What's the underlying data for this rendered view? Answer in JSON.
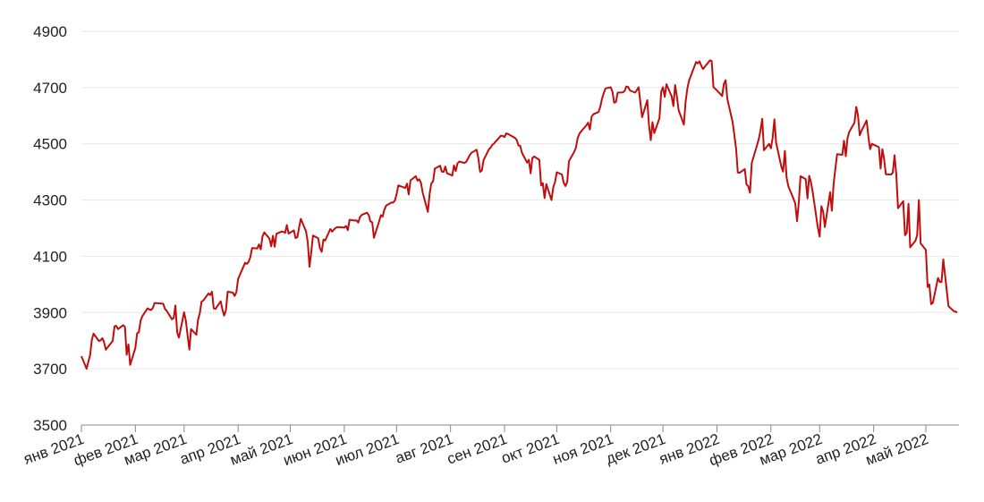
{
  "chart_data": {
    "type": "line",
    "color": "#c00d0d",
    "grid": true,
    "ylim": [
      3500,
      4900
    ],
    "yticks": [
      3500,
      3700,
      3900,
      4100,
      4300,
      4500,
      4700,
      4900
    ],
    "xlim": [
      0,
      504
    ],
    "xticks": [
      {
        "value": 0,
        "label": "янв 2021"
      },
      {
        "value": 31,
        "label": "фев 2021"
      },
      {
        "value": 59,
        "label": "мар 2021"
      },
      {
        "value": 90,
        "label": "апр 2021"
      },
      {
        "value": 120,
        "label": "май 2021"
      },
      {
        "value": 151,
        "label": "июн 2021"
      },
      {
        "value": 181,
        "label": "июл 2021"
      },
      {
        "value": 212,
        "label": "авг 2021"
      },
      {
        "value": 243,
        "label": "сен 2021"
      },
      {
        "value": 273,
        "label": "окт 2021"
      },
      {
        "value": 304,
        "label": "ноя 2021"
      },
      {
        "value": 334,
        "label": "дек 2021"
      },
      {
        "value": 365,
        "label": "янв 2022"
      },
      {
        "value": 396,
        "label": "фев 2022"
      },
      {
        "value": 424,
        "label": "мар 2022"
      },
      {
        "value": 455,
        "label": "апр 2022"
      },
      {
        "value": 485,
        "label": "май 2022"
      }
    ],
    "x": [
      0,
      3,
      4,
      5,
      6,
      7,
      10,
      11,
      12,
      13,
      14,
      18,
      19,
      20,
      21,
      24,
      25,
      26,
      27,
      28,
      31,
      32,
      33,
      34,
      35,
      38,
      39,
      40,
      41,
      42,
      46,
      47,
      48,
      49,
      52,
      53,
      54,
      55,
      56,
      59,
      60,
      61,
      62,
      63,
      66,
      67,
      68,
      69,
      70,
      73,
      74,
      75,
      76,
      77,
      80,
      81,
      82,
      83,
      84,
      87,
      88,
      89,
      90,
      94,
      95,
      96,
      97,
      98,
      101,
      102,
      103,
      104,
      105,
      108,
      109,
      110,
      111,
      112,
      115,
      116,
      117,
      118,
      119,
      122,
      123,
      124,
      125,
      126,
      129,
      130,
      131,
      132,
      133,
      136,
      137,
      138,
      139,
      140,
      143,
      144,
      145,
      146,
      147,
      151,
      152,
      153,
      154,
      157,
      158,
      159,
      160,
      161,
      164,
      165,
      166,
      167,
      168,
      171,
      172,
      173,
      174,
      175,
      178,
      179,
      180,
      181,
      182,
      186,
      187,
      188,
      189,
      192,
      193,
      194,
      195,
      196,
      199,
      200,
      201,
      202,
      203,
      206,
      207,
      208,
      209,
      210,
      213,
      214,
      215,
      216,
      217,
      220,
      221,
      222,
      223,
      224,
      227,
      228,
      229,
      230,
      231,
      234,
      235,
      236,
      237,
      238,
      241,
      242,
      243,
      244,
      245,
      249,
      250,
      251,
      252,
      253,
      256,
      257,
      258,
      259,
      260,
      263,
      264,
      265,
      266,
      267,
      270,
      271,
      272,
      273,
      276,
      277,
      278,
      279,
      280,
      283,
      284,
      285,
      286,
      287,
      290,
      291,
      292,
      293,
      294,
      297,
      298,
      299,
      300,
      301,
      304,
      305,
      306,
      307,
      308,
      311,
      312,
      313,
      314,
      315,
      318,
      319,
      320,
      322,
      325,
      326,
      327,
      328,
      329,
      332,
      333,
      334,
      335,
      336,
      339,
      340,
      341,
      342,
      343,
      346,
      347,
      348,
      349,
      353,
      354,
      355,
      356,
      357,
      361,
      362,
      363,
      364,
      367,
      368,
      369,
      370,
      371,
      374,
      375,
      376,
      377,
      378,
      381,
      382,
      383,
      384,
      385,
      389,
      390,
      391,
      392,
      395,
      396,
      397,
      398,
      399,
      402,
      403,
      404,
      405,
      406,
      409,
      410,
      411,
      412,
      413,
      416,
      417,
      418,
      419,
      420,
      423,
      424,
      425,
      426,
      427,
      430,
      431,
      432,
      433,
      434,
      437,
      438,
      439,
      440,
      441,
      444,
      445,
      446,
      447,
      448,
      451,
      452,
      453,
      454,
      458,
      459,
      460,
      461,
      462,
      465,
      466,
      467,
      468,
      469,
      472,
      473,
      474,
      475,
      476,
      479,
      480,
      481,
      482,
      485,
      486,
      487,
      488,
      489,
      492,
      493,
      494,
      495,
      498,
      501,
      503
    ],
    "values": [
      3745,
      3700,
      3726,
      3748,
      3804,
      3825,
      3799,
      3801,
      3809,
      3795,
      3768,
      3799,
      3851,
      3853,
      3841,
      3855,
      3849,
      3750,
      3787,
      3714,
      3774,
      3826,
      3830,
      3871,
      3887,
      3915,
      3911,
      3909,
      3916,
      3934,
      3932,
      3931,
      3913,
      3906,
      3876,
      3881,
      3925,
      3829,
      3811,
      3901,
      3870,
      3819,
      3768,
      3841,
      3821,
      3875,
      3898,
      3939,
      3943,
      3968,
      3962,
      3974,
      3915,
      3913,
      3940,
      3910,
      3889,
      3909,
      3974,
      3971,
      3959,
      3972,
      4020,
      4077,
      4073,
      4080,
      4097,
      4129,
      4128,
      4142,
      4125,
      4170,
      4185,
      4163,
      4135,
      4173,
      4134,
      4180,
      4188,
      4187,
      4183,
      4211,
      4181,
      4192,
      4165,
      4168,
      4202,
      4233,
      4189,
      4152,
      4063,
      4113,
      4174,
      4164,
      4128,
      4116,
      4160,
      4156,
      4197,
      4188,
      4195,
      4201,
      4204,
      4202,
      4208,
      4193,
      4230,
      4227,
      4228,
      4220,
      4239,
      4247,
      4255,
      4247,
      4224,
      4221,
      4166,
      4224,
      4246,
      4241,
      4266,
      4280,
      4291,
      4291,
      4298,
      4320,
      4352,
      4343,
      4358,
      4320,
      4370,
      4385,
      4369,
      4374,
      4361,
      4327,
      4258,
      4323,
      4359,
      4367,
      4412,
      4422,
      4401,
      4400,
      4419,
      4395,
      4387,
      4423,
      4403,
      4430,
      4437,
      4432,
      4436,
      4447,
      4460,
      4468,
      4479,
      4448,
      4400,
      4405,
      4442,
      4480,
      4486,
      4497,
      4501,
      4509,
      4529,
      4528,
      4524,
      4537,
      4535,
      4521,
      4514,
      4494,
      4493,
      4469,
      4433,
      4443,
      4395,
      4449,
      4455,
      4443,
      4352,
      4360,
      4307,
      4357,
      4300,
      4346,
      4363,
      4399,
      4391,
      4361,
      4350,
      4364,
      4438,
      4471,
      4486,
      4519,
      4536,
      4544,
      4566,
      4575,
      4551,
      4596,
      4605,
      4613,
      4631,
      4660,
      4680,
      4697,
      4701,
      4685,
      4646,
      4649,
      4682,
      4683,
      4688,
      4704,
      4702,
      4690,
      4682,
      4691,
      4701,
      4595,
      4655,
      4567,
      4513,
      4577,
      4538,
      4591,
      4686,
      4701,
      4667,
      4712,
      4669,
      4634,
      4709,
      4668,
      4620,
      4568,
      4649,
      4697,
      4725,
      4791,
      4786,
      4793,
      4778,
      4766,
      4797,
      4794,
      4701,
      4696,
      4677,
      4670,
      4713,
      4726,
      4659,
      4577,
      4532,
      4482,
      4398,
      4397,
      4410,
      4356,
      4349,
      4326,
      4432,
      4516,
      4547,
      4589,
      4477,
      4500,
      4484,
      4521,
      4587,
      4504,
      4418,
      4401,
      4475,
      4380,
      4349,
      4304,
      4288,
      4225,
      4289,
      4385,
      4374,
      4306,
      4386,
      4363,
      4329,
      4201,
      4170,
      4278,
      4259,
      4204,
      4328,
      4262,
      4357,
      4411,
      4463,
      4461,
      4511,
      4456,
      4520,
      4543,
      4575,
      4631,
      4602,
      4530,
      4546,
      4583,
      4525,
      4481,
      4500,
      4488,
      4412,
      4481,
      4446,
      4392,
      4391,
      4397,
      4459,
      4393,
      4271,
      4296,
      4175,
      4183,
      4287,
      4132,
      4155,
      4175,
      4300,
      4146,
      4123,
      3991,
      4000,
      3930,
      3934,
      4023,
      4009,
      4008,
      4089,
      3923,
      3905,
      3901
    ]
  }
}
